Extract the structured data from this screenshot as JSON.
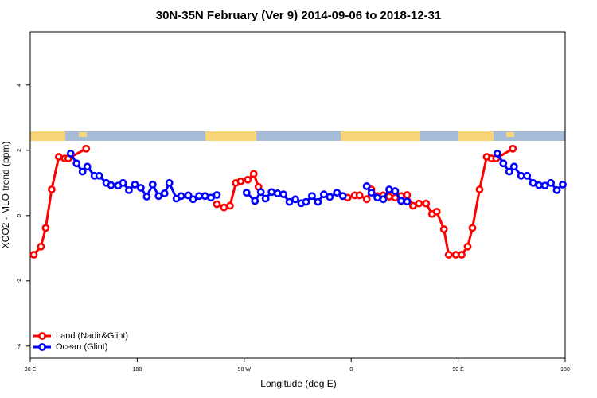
{
  "chart_data": {
    "type": "line",
    "title": "30N-35N February (Ver 9)   2014-09-06 to 2018-12-31",
    "x_label": "Longitude (deg E)",
    "y_label": "XCO2 - MLO trend (ppm)",
    "xlim": [
      90,
      540
    ],
    "xticks": [
      {
        "value": 90,
        "label": "90 E"
      },
      180,
      {
        "value": 270,
        "label": "90 W"
      },
      {
        "value": 360,
        "label": "0"
      },
      {
        "value": 450,
        "label": "90 E"
      },
      {
        "value": 540,
        "label": "180"
      }
    ],
    "ylim": [
      -4.37,
      5.63
    ],
    "yticks": [
      -4,
      -2,
      0,
      2,
      4
    ],
    "legend": "bottom-left",
    "series": [
      {
        "name": "Land (Nadir&Glint)",
        "color": "#ff0000",
        "x": [
          93,
          99,
          103,
          108,
          114,
          119,
          122,
          137,
          190,
          247,
          253,
          258,
          263,
          267,
          273,
          278,
          282,
          320,
          353,
          357,
          363,
          367,
          373,
          377,
          382,
          387,
          392,
          397,
          402,
          407,
          412,
          417,
          423,
          428,
          432,
          438,
          442,
          448,
          453,
          458,
          462,
          468,
          474,
          478,
          482,
          496
        ],
        "values": [
          -1.2,
          -0.95,
          -0.38,
          0.8,
          1.8,
          1.75,
          1.75,
          2.05,
          null,
          0.35,
          0.25,
          0.3,
          1.0,
          1.05,
          1.1,
          1.28,
          0.88,
          null,
          0.6,
          0.55,
          0.62,
          0.62,
          0.5,
          0.8,
          0.6,
          0.62,
          0.58,
          0.55,
          0.6,
          0.63,
          0.3,
          0.37,
          0.37,
          0.05,
          0.12,
          -0.42,
          -1.2,
          -1.2,
          -1.2,
          -0.95,
          -0.38,
          0.8,
          1.8,
          1.75,
          1.75,
          2.05
        ]
      },
      {
        "name": "Ocean (Glint)",
        "color": "#0000ff",
        "x": [
          124,
          129,
          134,
          138,
          144,
          148,
          154,
          158,
          164,
          168,
          173,
          178,
          183,
          188,
          193,
          198,
          203,
          207,
          213,
          217,
          223,
          227,
          232,
          237,
          242,
          247,
          260,
          272,
          279,
          284,
          288,
          293,
          298,
          303,
          308,
          313,
          318,
          322,
          327,
          332,
          337,
          342,
          348,
          353,
          363,
          373,
          377,
          382,
          387,
          392,
          397,
          402,
          407,
          445,
          483,
          488,
          493,
          497,
          503,
          508,
          513,
          518,
          523,
          528,
          533,
          538
        ],
        "values": [
          1.9,
          1.6,
          1.35,
          1.5,
          1.22,
          1.22,
          1.0,
          0.93,
          0.92,
          1.0,
          0.78,
          0.95,
          0.85,
          0.58,
          0.95,
          0.6,
          0.68,
          1.0,
          0.52,
          0.6,
          0.62,
          0.5,
          0.6,
          0.6,
          0.55,
          0.63,
          null,
          0.7,
          0.45,
          0.72,
          0.52,
          0.72,
          0.68,
          0.65,
          0.42,
          0.5,
          0.38,
          0.42,
          0.6,
          0.42,
          0.65,
          0.57,
          0.7,
          0.6,
          null,
          0.9,
          0.7,
          0.55,
          0.5,
          0.8,
          0.75,
          0.45,
          0.43,
          null,
          1.9,
          1.6,
          1.35,
          1.5,
          1.22,
          1.22,
          1.0,
          0.93,
          0.92,
          1.0,
          0.78,
          0.95
        ]
      }
    ]
  }
}
